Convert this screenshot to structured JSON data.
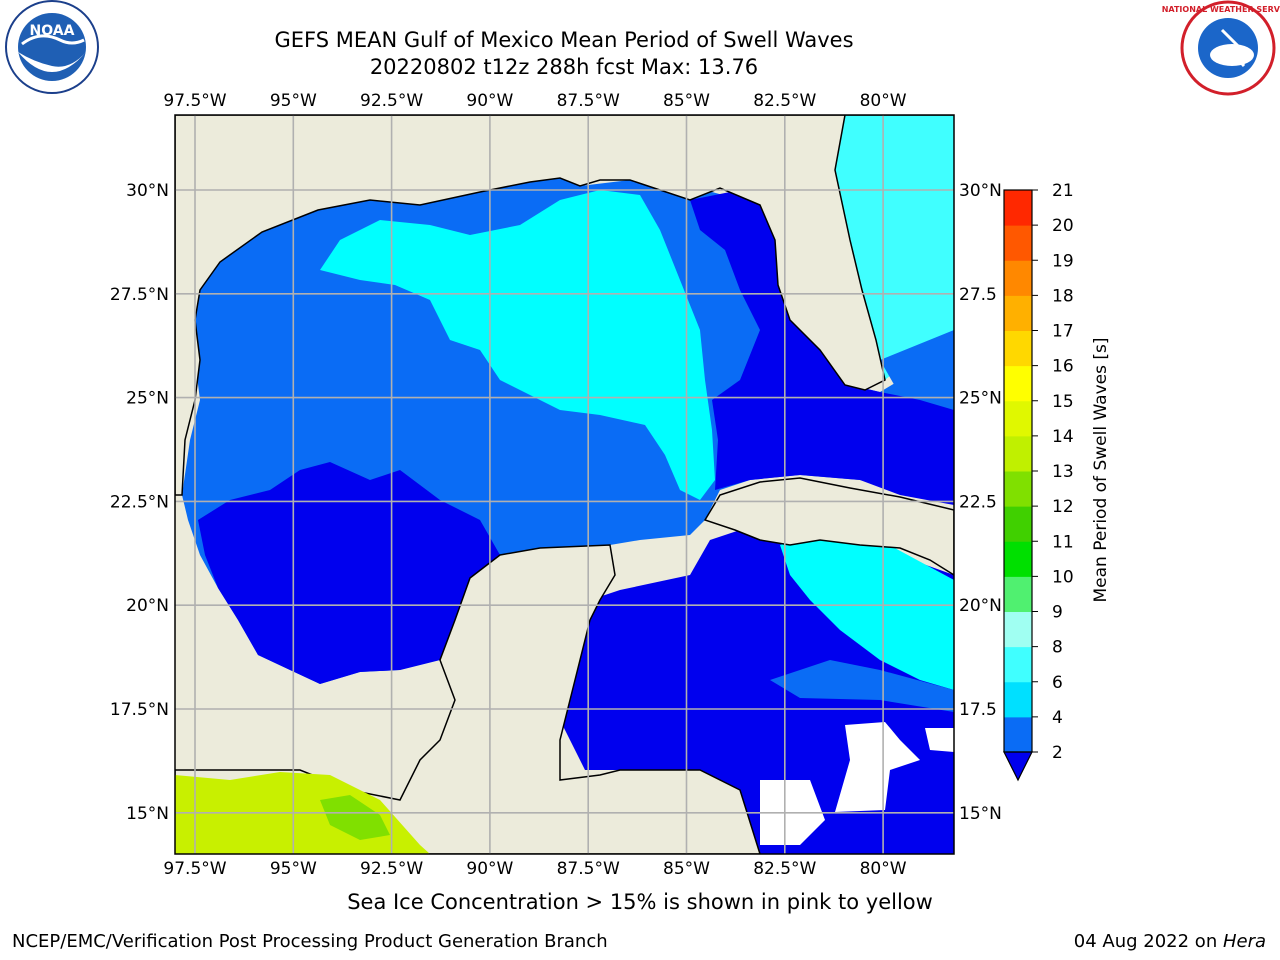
{
  "title_line1": "GEFS MEAN Gulf of Mexico Mean Period of Swell Waves",
  "title_line2": "20220802 t12z 288h fcst   Max: 13.76",
  "ice_note": "Sea Ice Concentration > 15% is shown in pink to yellow",
  "footer_left": "NCEP/EMC/Verification Post Processing Product Generation Branch",
  "footer_date": "04 Aug 2022 on ",
  "footer_host": "Hera",
  "lon_labels": [
    "97.5°W",
    "95°W",
    "92.5°W",
    "90°W",
    "87.5°W",
    "85°W",
    "82.5°W",
    "80°W"
  ],
  "lat_labels_left": [
    "30°N",
    "27.5°N",
    "25°N",
    "22.5°N",
    "20°N",
    "17.5°N",
    "15°N"
  ],
  "lat_labels_right": [
    "30°N",
    "27.5",
    "25°N",
    "22.5",
    "20°N",
    "17.5",
    "15°N"
  ],
  "colorbar": {
    "label": "Mean Period of Swell Waves [s]",
    "ticks": [
      "2",
      "4",
      "6",
      "8",
      "9",
      "10",
      "11",
      "12",
      "13",
      "14",
      "15",
      "16",
      "17",
      "18",
      "19",
      "20",
      "21"
    ],
    "colors": [
      "#0a6cf5",
      "#00e0ff",
      "#40ffff",
      "#a0fff2",
      "#50f070",
      "#00e000",
      "#40d000",
      "#80e000",
      "#c0f000",
      "#e0f800",
      "#ffff00",
      "#ffd800",
      "#ffb000",
      "#ff8800",
      "#ff5800",
      "#ff2800",
      "#ff0000"
    ],
    "under_color": "#0000ee"
  },
  "logos": {
    "left": "NOAA",
    "left_ring": "NATIONAL OCEANIC AND ATMOSPHERIC ADMINISTRATION · U.S. DEPARTMENT OF COMMERCE",
    "right_ring": "NATIONAL WEATHER SERVICE"
  },
  "colors": {
    "land": "#ecebdb",
    "deep_blue": "#0000ee",
    "mid_blue": "#0a6cf5",
    "cyan": "#00ffff",
    "light_cyan": "#40ffff",
    "lime": "#c8f000",
    "grid": "#b0b0b0"
  }
}
